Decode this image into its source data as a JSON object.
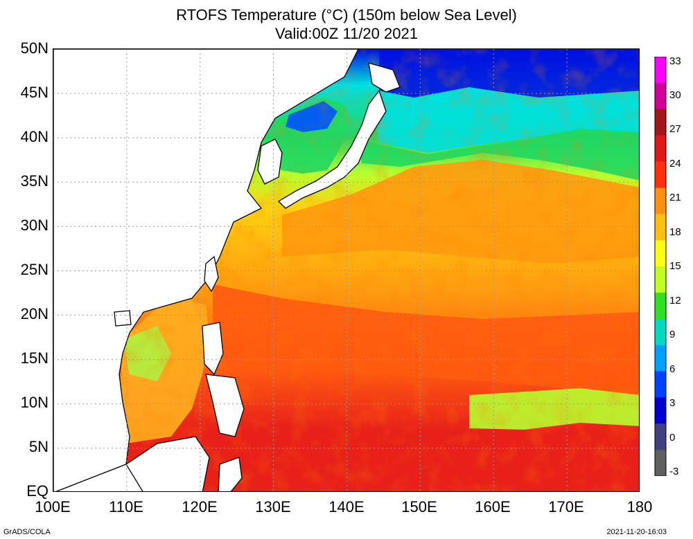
{
  "title_line1": "RTOFS Temperature (°C) (150m below Sea Level)",
  "title_line2": "Valid:00Z 11/20 2021",
  "lat_labels": [
    "50N",
    "45N",
    "40N",
    "35N",
    "30N",
    "25N",
    "20N",
    "15N",
    "10N",
    "5N",
    "EQ"
  ],
  "lon_labels": [
    "100E",
    "110E",
    "120E",
    "130E",
    "140E",
    "150E",
    "160E",
    "170E",
    "180"
  ],
  "colorbar": {
    "labels": [
      "33",
      "30",
      "27",
      "24",
      "21",
      "18",
      "15",
      "12",
      "9",
      "6",
      "3",
      "0",
      "-3"
    ],
    "colors": [
      "#ff00ff",
      "#d00099",
      "#a01818",
      "#e01818",
      "#ff3010",
      "#ff9010",
      "#ffc010",
      "#ffff10",
      "#c0ff20",
      "#30e020",
      "#00d8c0",
      "#00a0ff",
      "#0040ff",
      "#0000d0",
      "#404080",
      "#606060"
    ]
  },
  "region_colors": {
    "land": "#ffffff",
    "tropics_hot": "#e8201a",
    "tropics_warm": "#ff5a10",
    "subtropics": "#ff9a10",
    "midlat": "#ffd010",
    "front": "#b8ff30",
    "cold_green": "#20d860",
    "cold_cyan": "#00e0e0",
    "cold_blue": "#0050ff",
    "deep_blue": "#0010e0",
    "scs": "#ffb020",
    "gulf_green": "#b0f040"
  },
  "footer_left": "GrADS/COLA",
  "footer_right": "2021-11-20-16:03"
}
